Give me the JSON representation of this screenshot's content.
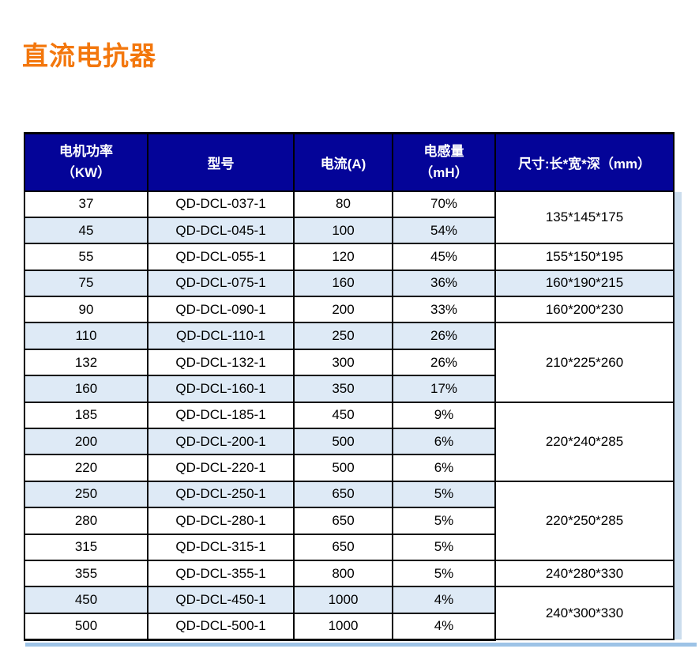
{
  "page": {
    "title": "直流电抗器"
  },
  "colors": {
    "accent-orange": "#f3770d",
    "header-navy": "#040498",
    "row-alt": "#deeaf6",
    "shadow-light": "#cbdded",
    "shadow-blue": "#9dc3e6"
  },
  "table": {
    "header": {
      "power": "电机功率\n（KW）",
      "model": "型号",
      "current": "电流(A)",
      "inductance": "电感量\n（mH）",
      "dimensions": "尺寸:长*宽*深（mm）"
    },
    "rows": [
      {
        "power": "37",
        "model": "QD-DCL-037-1",
        "current": "80",
        "inductance": "70%",
        "shaded": false
      },
      {
        "power": "45",
        "model": "QD-DCL-045-1",
        "current": "100",
        "inductance": "54%",
        "shaded": true
      },
      {
        "power": "55",
        "model": "QD-DCL-055-1",
        "current": "120",
        "inductance": "45%",
        "shaded": false
      },
      {
        "power": "75",
        "model": "QD-DCL-075-1",
        "current": "160",
        "inductance": "36%",
        "shaded": true
      },
      {
        "power": "90",
        "model": "QD-DCL-090-1",
        "current": "200",
        "inductance": "33%",
        "shaded": false
      },
      {
        "power": "110",
        "model": "QD-DCL-110-1",
        "current": "250",
        "inductance": "26%",
        "shaded": true
      },
      {
        "power": "132",
        "model": "QD-DCL-132-1",
        "current": "300",
        "inductance": "26%",
        "shaded": false
      },
      {
        "power": "160",
        "model": "QD-DCL-160-1",
        "current": "350",
        "inductance": "17%",
        "shaded": true
      },
      {
        "power": "185",
        "model": "QD-DCL-185-1",
        "current": "450",
        "inductance": "9%",
        "shaded": false
      },
      {
        "power": "200",
        "model": "QD-DCL-200-1",
        "current": "500",
        "inductance": "6%",
        "shaded": true
      },
      {
        "power": "220",
        "model": "QD-DCL-220-1",
        "current": "500",
        "inductance": "6%",
        "shaded": false
      },
      {
        "power": "250",
        "model": "QD-DCL-250-1",
        "current": "650",
        "inductance": "5%",
        "shaded": true
      },
      {
        "power": "280",
        "model": "QD-DCL-280-1",
        "current": "650",
        "inductance": "5%",
        "shaded": false
      },
      {
        "power": "315",
        "model": "QD-DCL-315-1",
        "current": "650",
        "inductance": "5%",
        "shaded": false
      },
      {
        "power": "355",
        "model": "QD-DCL-355-1",
        "current": "800",
        "inductance": "5%",
        "shaded": false
      },
      {
        "power": "450",
        "model": "QD-DCL-450-1",
        "current": "1000",
        "inductance": "4%",
        "shaded": true
      },
      {
        "power": "500",
        "model": "QD-DCL-500-1",
        "current": "1000",
        "inductance": "4%",
        "shaded": false
      }
    ],
    "dimension_cells": [
      {
        "text": "135*145*175",
        "span": 2,
        "shaded": false
      },
      {
        "text": "155*150*195",
        "span": 1,
        "shaded": false
      },
      {
        "text": "160*190*215",
        "span": 1,
        "shaded": true
      },
      {
        "text": "160*200*230",
        "span": 1,
        "shaded": false
      },
      {
        "text": "210*225*260",
        "span": 3,
        "shaded": false
      },
      {
        "text": "220*240*285",
        "span": 3,
        "shaded": false
      },
      {
        "text": "220*250*285",
        "span": 3,
        "shaded": false
      },
      {
        "text": "240*280*330",
        "span": 1,
        "shaded": false
      },
      {
        "text": "240*300*330",
        "span": 2,
        "shaded": false
      }
    ]
  }
}
